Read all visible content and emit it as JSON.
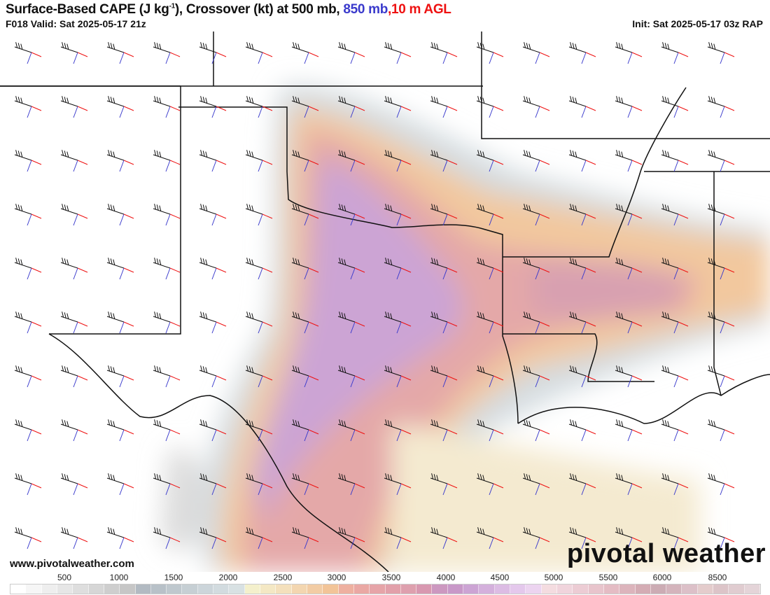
{
  "header": {
    "title_main": "Surface-Based CAPE (J kg",
    "title_sup": "-1",
    "title_rest": "), Crossover (kt) at 500 mb, ",
    "title_850": "850 mb",
    "title_sep": ",",
    "title_10m": "10 m AGL",
    "valid": "F018 Valid: Sat 2025-05-17 21z",
    "init": "Init: Sat 2025-05-17 03z RAP"
  },
  "footer": {
    "website": "www.pivotalweather.com",
    "logo_text": "pivotal weather"
  },
  "colors": {
    "wind_500mb": "#111111",
    "wind_850mb": "#3a3acc",
    "wind_10m": "#ee1111"
  },
  "colorbar": {
    "labels": [
      "500",
      "1000",
      "1500",
      "2000",
      "2500",
      "3000",
      "3500",
      "4000",
      "4500",
      "5000",
      "5500",
      "6000",
      "8500"
    ],
    "colors": [
      "#ffffff",
      "#f6f6f6",
      "#eeeeee",
      "#e6e6e6",
      "#dedede",
      "#d6d6d6",
      "#cecece",
      "#c6c6c6",
      "#b2bac2",
      "#b8c1c8",
      "#bfc8ce",
      "#c6cfd4",
      "#ccd5da",
      "#d2dbdf",
      "#d8e1e3",
      "#f4f0cc",
      "#f4e8c4",
      "#f4e0bc",
      "#f3d6b0",
      "#f2cca4",
      "#f2c498",
      "#eeb0a0",
      "#eaa8a4",
      "#e6a4a8",
      "#e2a0aa",
      "#dea0ae",
      "#d898b0",
      "#cc98c0",
      "#c898c8",
      "#cca4d4",
      "#d4b0dc",
      "#dcbce4",
      "#e4c8ec",
      "#ecd4f0",
      "#f4dce0",
      "#f0d4dc",
      "#ecccd4",
      "#e8c4cc",
      "#e4bcc4",
      "#dcb4bc",
      "#d4acb4",
      "#ccacb4",
      "#d4b4bc",
      "#dcc0c8",
      "#e4cccc",
      "#dcc4c8",
      "#e0ccd0",
      "#e4d4d8"
    ]
  }
}
